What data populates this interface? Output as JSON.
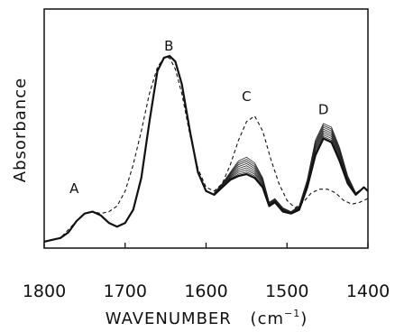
{
  "chart_data": {
    "type": "line",
    "xlabel": "WAVENUMBER",
    "xlabel_unit_base": "(cm",
    "xlabel_unit_exp": "−1",
    "xlabel_unit_close": ")",
    "ylabel": "Absorbance",
    "xlim": [
      1800,
      1400
    ],
    "ylim": [
      0,
      1
    ],
    "x_ticks": [
      1800,
      1700,
      1600,
      1500,
      1400
    ],
    "x_tick_labels": [
      "1800",
      "1700",
      "1600",
      "1500",
      "1400"
    ],
    "annotations": [
      {
        "text": "A",
        "x": 1763,
        "y": 0.27
      },
      {
        "text": "B",
        "x": 1646,
        "y": 1.03
      },
      {
        "text": "C",
        "x": 1550,
        "y": 0.76
      },
      {
        "text": "D",
        "x": 1455,
        "y": 0.69
      }
    ],
    "series": [
      {
        "style": "solid-bold",
        "x": [
          1800,
          1790,
          1780,
          1770,
          1760,
          1750,
          1740,
          1730,
          1720,
          1710,
          1700,
          1690,
          1680,
          1670,
          1660,
          1652,
          1645,
          1638,
          1630,
          1620,
          1610,
          1600,
          1590,
          1580,
          1570,
          1560,
          1550,
          1540,
          1530,
          1522,
          1515,
          1505,
          1495,
          1485,
          1475,
          1465,
          1455,
          1445,
          1435,
          1425,
          1415,
          1405,
          1400
        ],
        "y": [
          0.01,
          0.02,
          0.03,
          0.06,
          0.12,
          0.16,
          0.17,
          0.15,
          0.11,
          0.09,
          0.11,
          0.18,
          0.35,
          0.65,
          0.92,
          0.99,
          1.0,
          0.97,
          0.85,
          0.6,
          0.38,
          0.28,
          0.26,
          0.3,
          0.34,
          0.36,
          0.37,
          0.35,
          0.3,
          0.2,
          0.22,
          0.17,
          0.16,
          0.18,
          0.3,
          0.47,
          0.56,
          0.54,
          0.44,
          0.32,
          0.26,
          0.3,
          0.28
        ]
      },
      {
        "style": "dashed",
        "x": [
          1800,
          1780,
          1760,
          1750,
          1740,
          1730,
          1720,
          1710,
          1700,
          1690,
          1680,
          1670,
          1660,
          1652,
          1645,
          1638,
          1630,
          1620,
          1610,
          1600,
          1590,
          1580,
          1570,
          1560,
          1550,
          1540,
          1530,
          1520,
          1510,
          1500,
          1490,
          1480,
          1470,
          1460,
          1450,
          1440,
          1430,
          1420,
          1410,
          1400
        ],
        "y": [
          0.01,
          0.03,
          0.12,
          0.16,
          0.17,
          0.16,
          0.17,
          0.2,
          0.28,
          0.42,
          0.6,
          0.8,
          0.94,
          0.99,
          0.99,
          0.93,
          0.8,
          0.58,
          0.4,
          0.3,
          0.28,
          0.32,
          0.42,
          0.55,
          0.65,
          0.68,
          0.6,
          0.45,
          0.32,
          0.23,
          0.19,
          0.22,
          0.27,
          0.29,
          0.29,
          0.27,
          0.23,
          0.21,
          0.22,
          0.24
        ]
      }
    ],
    "family": {
      "count": 9,
      "x": [
        1590,
        1580,
        1570,
        1560,
        1550,
        1540,
        1530,
        1522,
        1515,
        1505,
        1495,
        1485,
        1475,
        1465,
        1455,
        1445,
        1435,
        1425,
        1415,
        1405,
        1400
      ],
      "y_base": [
        0.26,
        0.3,
        0.34,
        0.36,
        0.37,
        0.35,
        0.3,
        0.2,
        0.22,
        0.17,
        0.16,
        0.18,
        0.3,
        0.47,
        0.56,
        0.54,
        0.44,
        0.32,
        0.26,
        0.3,
        0.28
      ],
      "y_top": [
        0.27,
        0.32,
        0.38,
        0.44,
        0.46,
        0.43,
        0.35,
        0.22,
        0.24,
        0.19,
        0.17,
        0.2,
        0.34,
        0.55,
        0.64,
        0.62,
        0.51,
        0.36,
        0.27,
        0.3,
        0.28
      ]
    }
  }
}
